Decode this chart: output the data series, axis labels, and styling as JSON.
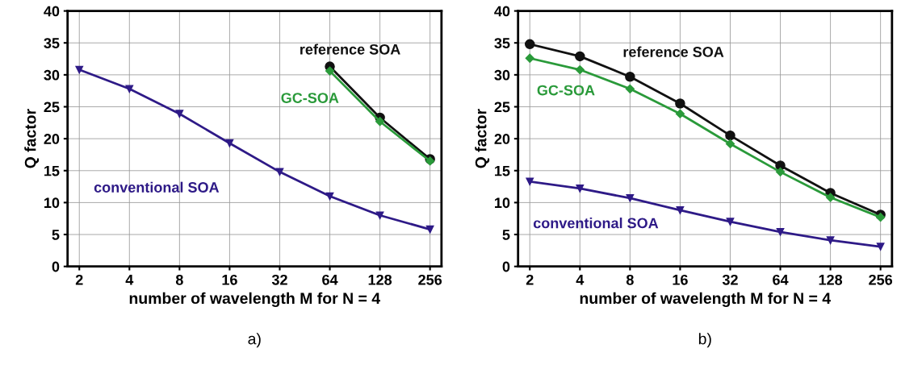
{
  "chart_data": [
    {
      "type": "line",
      "title": "a)",
      "xlabel": "number of wavelength M for N = 4",
      "ylabel": "Q factor",
      "log": "x",
      "xlim": [
        1.7,
        300
      ],
      "xticks": [
        2,
        4,
        8,
        16,
        32,
        64,
        128,
        256
      ],
      "ylim": [
        0,
        40
      ],
      "yticks": [
        0,
        5,
        10,
        15,
        20,
        25,
        30,
        35,
        40
      ],
      "grid": true,
      "legend": false,
      "line_style": "solid",
      "series": [
        {
          "name": "reference SOA",
          "color": "#111111",
          "marker": "circle",
          "x": [
            64,
            128,
            256
          ],
          "values": [
            31.3,
            23.3,
            16.8
          ]
        },
        {
          "name": "GC-SOA",
          "color": "#2a9a3a",
          "marker": "diamond",
          "x": [
            64,
            128,
            256
          ],
          "values": [
            30.6,
            22.7,
            16.5
          ]
        },
        {
          "name": "conventional SOA",
          "color": "#2e1a87",
          "marker": "triangle",
          "x": [
            2,
            4,
            8,
            16,
            32,
            64,
            128,
            256
          ],
          "values": [
            30.8,
            27.8,
            23.9,
            19.3,
            14.8,
            11.0,
            8.0,
            5.8
          ]
        }
      ]
    },
    {
      "type": "line",
      "title": "b)",
      "xlabel": "number of wavelength M for N = 4",
      "ylabel": "Q factor",
      "log": "x",
      "xlim": [
        1.7,
        300
      ],
      "xticks": [
        2,
        4,
        8,
        16,
        32,
        64,
        128,
        256
      ],
      "ylim": [
        0,
        40
      ],
      "yticks": [
        0,
        5,
        10,
        15,
        20,
        25,
        30,
        35,
        40
      ],
      "grid": true,
      "legend": false,
      "line_style": "solid",
      "series": [
        {
          "name": "reference SOA",
          "color": "#111111",
          "marker": "circle",
          "x": [
            2,
            4,
            8,
            16,
            32,
            64,
            128,
            256
          ],
          "values": [
            34.8,
            32.9,
            29.7,
            25.5,
            20.5,
            15.8,
            11.5,
            8.1
          ]
        },
        {
          "name": "GC-SOA",
          "color": "#2a9a3a",
          "marker": "diamond",
          "x": [
            2,
            4,
            8,
            16,
            32,
            64,
            128,
            256
          ],
          "values": [
            32.6,
            30.8,
            27.8,
            23.9,
            19.2,
            14.8,
            10.8,
            7.7
          ]
        },
        {
          "name": "conventional SOA",
          "color": "#2e1a87",
          "marker": "triangle",
          "x": [
            2,
            4,
            8,
            16,
            32,
            64,
            128,
            256
          ],
          "values": [
            13.3,
            12.2,
            10.7,
            8.8,
            7.0,
            5.4,
            4.1,
            3.1
          ]
        }
      ]
    }
  ]
}
